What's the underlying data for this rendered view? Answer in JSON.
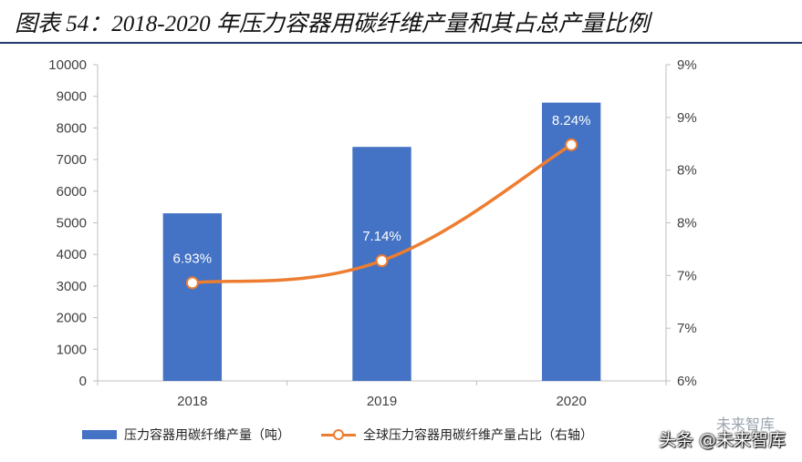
{
  "header": {
    "title": "图表 54：2018-2020 年压力容器用碳纤维产量和其占总产量比例"
  },
  "chart_data": {
    "type": "bar",
    "categories": [
      "2018",
      "2019",
      "2020"
    ],
    "series": [
      {
        "name": "压力容器用碳纤维产量（吨）",
        "type": "bar",
        "axis": "left",
        "values": [
          5300,
          7400,
          8800
        ],
        "color": "#4472c4"
      },
      {
        "name": "全球压力容器用碳纤维产量占比（右轴）",
        "type": "line",
        "axis": "right",
        "values": [
          6.93,
          7.14,
          8.24
        ],
        "data_labels": [
          "6.93%",
          "7.14%",
          "8.24%"
        ],
        "color": "#ed7d31"
      }
    ],
    "left_axis": {
      "ylim": [
        0,
        10000
      ],
      "ticks": [
        "0",
        "1000",
        "2000",
        "3000",
        "4000",
        "5000",
        "6000",
        "7000",
        "8000",
        "9000",
        "10000"
      ]
    },
    "right_axis": {
      "ylim": [
        6.0,
        9.0
      ],
      "ticks": [
        "6%",
        "7%",
        "7%",
        "8%",
        "8%",
        "9%",
        "9%"
      ]
    },
    "legend_position": "bottom"
  },
  "legend": {
    "bar_label": "压力容器用碳纤维产量（吨）",
    "line_label": "全球压力容器用碳纤维产量占比（右轴）"
  },
  "watermark": {
    "top_text": "未来智库",
    "bottom_text": "头条 @未来智库"
  }
}
